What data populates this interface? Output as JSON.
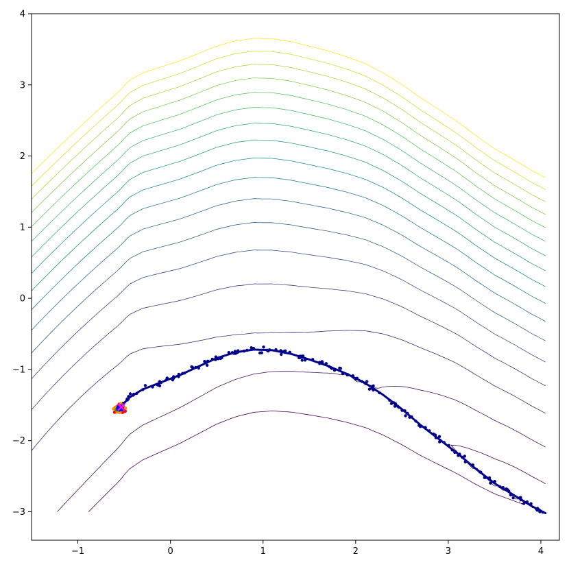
{
  "chart_data": {
    "type": "scatter",
    "title": "",
    "xlabel": "",
    "ylabel": "",
    "xlim": [
      -1.5,
      4.2
    ],
    "ylim": [
      -3.4,
      4.0
    ],
    "grid": false,
    "legend": "none",
    "xticks": [
      {
        "value": -1,
        "label": "−1"
      },
      {
        "value": 0,
        "label": "0"
      },
      {
        "value": 1,
        "label": "1"
      },
      {
        "value": 2,
        "label": "2"
      },
      {
        "value": 3,
        "label": "3"
      },
      {
        "value": 4,
        "label": "4"
      }
    ],
    "yticks": [
      {
        "value": -3,
        "label": "−3"
      },
      {
        "value": -2,
        "label": "−2"
      },
      {
        "value": -1,
        "label": "−1"
      },
      {
        "value": 0,
        "label": "0"
      },
      {
        "value": 1,
        "label": "1"
      },
      {
        "value": 2,
        "label": "2"
      },
      {
        "value": 3,
        "label": "3"
      },
      {
        "value": 4,
        "label": "4"
      }
    ],
    "contour_field": {
      "expression": "x*y - cos(x) + y*y + 1.5*x - 0.75*y*y*y*y*0 + ... (approximate)",
      "x_range": [
        -1.5,
        4.05
      ],
      "y_range": [
        -3.0,
        4.0
      ],
      "levels": [
        -2.6,
        -1.0,
        1.0,
        3.0,
        5.0,
        7.0,
        9.0,
        11.0,
        13.0,
        15.0,
        17.0,
        19.0,
        21.0,
        23.0,
        25.0,
        27.0,
        29.0
      ],
      "colormap": "viridis"
    },
    "path_curve": {
      "name": "",
      "color": "#00008b",
      "points": [
        {
          "x": -0.55,
          "y": -1.55
        },
        {
          "x": -0.45,
          "y": -1.4
        },
        {
          "x": -0.3,
          "y": -1.28
        },
        {
          "x": -0.1,
          "y": -1.18
        },
        {
          "x": 0.1,
          "y": -1.08
        },
        {
          "x": 0.3,
          "y": -0.96
        },
        {
          "x": 0.5,
          "y": -0.84
        },
        {
          "x": 0.7,
          "y": -0.76
        },
        {
          "x": 0.9,
          "y": -0.72
        },
        {
          "x": 1.1,
          "y": -0.73
        },
        {
          "x": 1.3,
          "y": -0.78
        },
        {
          "x": 1.5,
          "y": -0.86
        },
        {
          "x": 1.7,
          "y": -0.95
        },
        {
          "x": 1.9,
          "y": -1.06
        },
        {
          "x": 2.1,
          "y": -1.19
        },
        {
          "x": 2.3,
          "y": -1.36
        },
        {
          "x": 2.5,
          "y": -1.56
        },
        {
          "x": 2.7,
          "y": -1.78
        },
        {
          "x": 2.9,
          "y": -1.98
        },
        {
          "x": 3.1,
          "y": -2.18
        },
        {
          "x": 3.3,
          "y": -2.4
        },
        {
          "x": 3.5,
          "y": -2.6
        },
        {
          "x": 3.7,
          "y": -2.76
        },
        {
          "x": 3.9,
          "y": -2.92
        },
        {
          "x": 4.05,
          "y": -3.02
        }
      ]
    },
    "scatter_series": [
      {
        "name": "",
        "color": "#00008b",
        "spread": 0.05,
        "count_per_segment": 7
      },
      {
        "name": "",
        "color": "#ff0000",
        "center": [
          -0.55,
          -1.55
        ],
        "spread": 0.1
      },
      {
        "name": "",
        "color": "#ff8c00",
        "center": [
          -0.55,
          -1.55
        ],
        "spread": 0.08
      },
      {
        "name": "",
        "color": "#228b22",
        "center": [
          -0.55,
          -1.55
        ],
        "spread": 0.06
      },
      {
        "name": "",
        "color": "#0000ff",
        "center": [
          -0.55,
          -1.55
        ],
        "spread": 0.04
      }
    ],
    "highlight_points": [
      {
        "x": -0.53,
        "y": -1.53,
        "color": "#ff00ff",
        "marker": "x"
      }
    ]
  }
}
